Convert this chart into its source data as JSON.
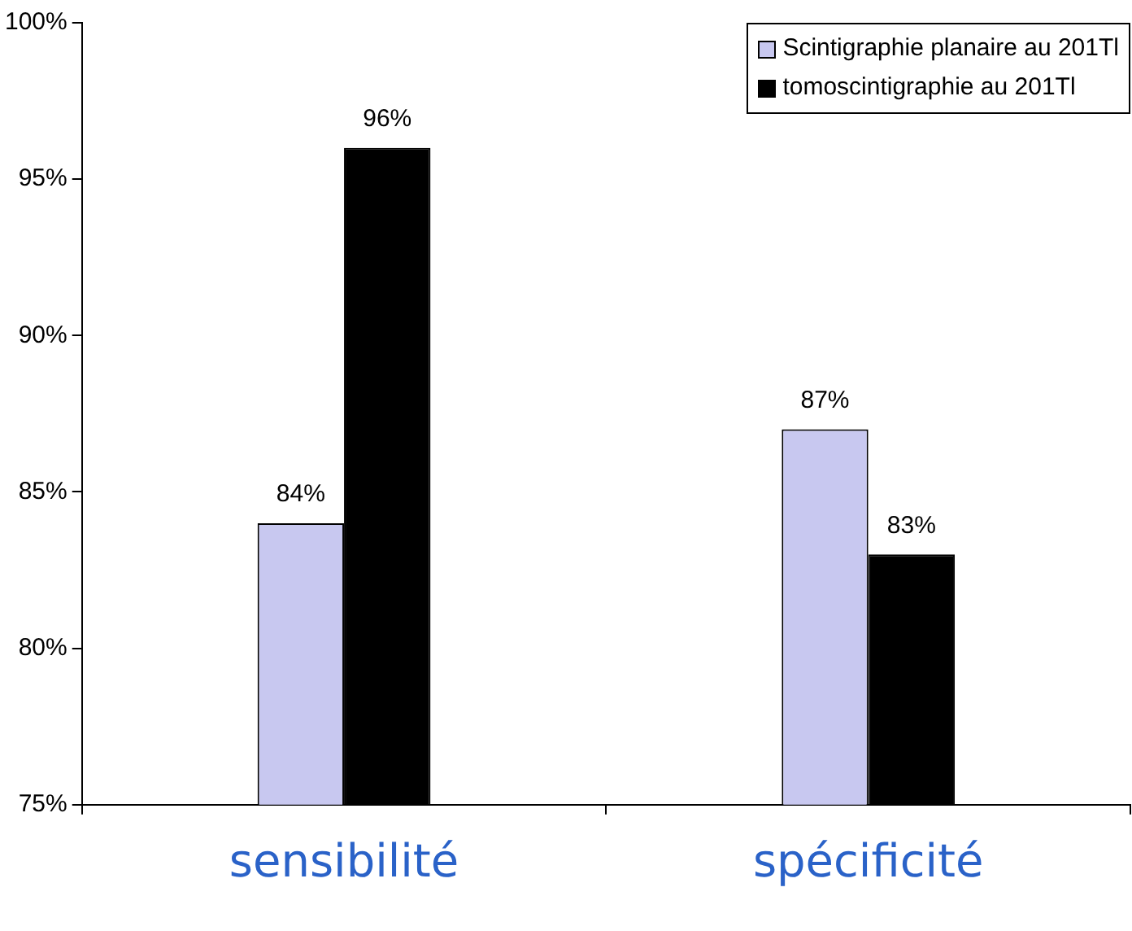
{
  "chart_data": {
    "type": "bar",
    "categories": [
      "sensibilité",
      "spécificité"
    ],
    "series": [
      {
        "name": "Scintigraphie planaire au 201Tl",
        "color": "#c8c8f0",
        "values": [
          84,
          87
        ],
        "value_labels": [
          "84%",
          "87%"
        ]
      },
      {
        "name": "tomoscintigraphie au 201Tl",
        "color": "#000000",
        "values": [
          96,
          83
        ],
        "value_labels": [
          "96%",
          "83%"
        ]
      }
    ],
    "ylim": [
      75,
      100
    ],
    "yticks": [
      {
        "value": 75,
        "label": "75%"
      },
      {
        "value": 80,
        "label": "80%"
      },
      {
        "value": 85,
        "label": "85%"
      },
      {
        "value": 90,
        "label": "90%"
      },
      {
        "value": 95,
        "label": "95%"
      },
      {
        "value": 100,
        "label": "100%"
      }
    ],
    "grid": false,
    "legend": "top right"
  }
}
